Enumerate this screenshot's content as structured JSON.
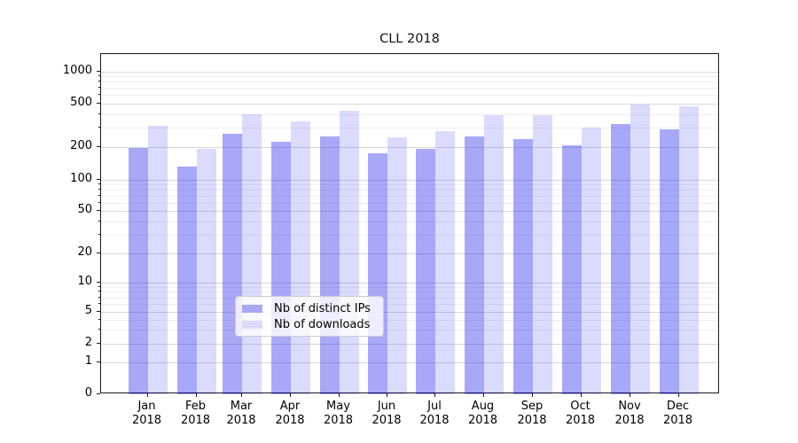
{
  "chart_data": {
    "type": "bar",
    "title": "CLL 2018",
    "categories": [
      "Jan 2018",
      "Feb 2018",
      "Mar 2018",
      "Apr 2018",
      "May 2018",
      "Jun 2018",
      "Jul 2018",
      "Aug 2018",
      "Sep 2018",
      "Oct 2018",
      "Nov 2018",
      "Dec 2018"
    ],
    "series": [
      {
        "name": "Nb of distinct IPs",
        "color": "rgba(0,0,238,0.34)",
        "solid_color": "#a8a8f4",
        "values": [
          195,
          131,
          265,
          222,
          248,
          175,
          193,
          248,
          235,
          208,
          322,
          287
        ]
      },
      {
        "name": "Nb of downloads",
        "color": "rgba(0,0,238,0.14)",
        "solid_color": "#dbdbf9",
        "values": [
          310,
          192,
          398,
          340,
          425,
          245,
          278,
          390,
          386,
          303,
          490,
          465
        ]
      }
    ],
    "xlabel": "",
    "ylabel": "",
    "yscale": "symlog",
    "ylim": [
      0,
      1500
    ],
    "yticks": [
      0,
      1,
      2,
      5,
      10,
      20,
      50,
      100,
      200,
      500,
      1000
    ],
    "minor_gridlines": [
      3,
      4,
      6,
      7,
      8,
      9,
      30,
      40,
      60,
      70,
      80,
      90,
      300,
      400,
      600,
      700,
      800,
      900
    ],
    "grid": true,
    "legend_position": "lower center"
  },
  "colors": {
    "bar_ips": "rgba(0,0,238,0.34)",
    "bar_downloads": "rgba(0,0,238,0.14)",
    "grid_major": "#d8d8d8",
    "grid_minor": "#eeeeee",
    "axis": "#1a1a1a",
    "legend_border": "#cccccc"
  }
}
